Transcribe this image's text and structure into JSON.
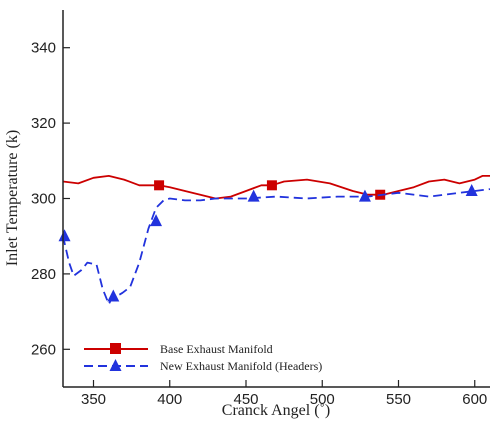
{
  "chart_data": {
    "type": "line",
    "xlabel": "Cranck Angel (˚)",
    "ylabel": "Inlet Temperature (k)",
    "xlim": [
      330,
      610
    ],
    "ylim": [
      250,
      350
    ],
    "xticks": [
      350,
      400,
      450,
      500,
      550,
      600
    ],
    "yticks": [
      260,
      280,
      300,
      320,
      340
    ],
    "legend_position": "bottom-left",
    "series": [
      {
        "name": "Base Exhaust Manifold",
        "color": "#cc0000",
        "line_style": "solid",
        "marker": "square",
        "x": [
          330,
          340,
          350,
          360,
          370,
          380,
          393,
          400,
          410,
          420,
          430,
          440,
          450,
          460,
          467,
          475,
          490,
          505,
          520,
          530,
          540,
          550,
          560,
          570,
          580,
          590,
          600,
          605,
          610
        ],
        "y": [
          304.5,
          304,
          305.5,
          306,
          305,
          303.5,
          303.5,
          303,
          302,
          301,
          300,
          300.5,
          302,
          303.5,
          303.5,
          304.5,
          305,
          304,
          302,
          301,
          301,
          302,
          303,
          304.5,
          305,
          304,
          305,
          306,
          306
        ],
        "marker_x": [
          393,
          467,
          538
        ],
        "marker_y": [
          303.5,
          303.5,
          301
        ]
      },
      {
        "name": "New Exhaust Manifold (Headers)",
        "color": "#2233dd",
        "line_style": "dashed",
        "marker": "triangle",
        "x": [
          330,
          334,
          337,
          342,
          346,
          352,
          356,
          360,
          362,
          365,
          369,
          374,
          380,
          386,
          391,
          396,
          400,
          410,
          420,
          430,
          440,
          450,
          470,
          490,
          510,
          530,
          550,
          570,
          590,
          600,
          610
        ],
        "y": [
          290,
          283,
          279.5,
          281,
          283,
          282.5,
          276,
          272,
          273.5,
          274,
          275,
          276.5,
          283,
          292,
          297.5,
          299.5,
          300,
          299.5,
          299.5,
          300,
          300,
          300,
          300.5,
          300,
          300.5,
          300.5,
          301.5,
          300.5,
          301.5,
          302,
          302.5
        ],
        "marker_x": [
          331,
          363,
          391,
          455,
          528,
          598
        ],
        "marker_y": [
          290,
          274,
          294,
          300.5,
          300.5,
          302
        ]
      }
    ]
  }
}
